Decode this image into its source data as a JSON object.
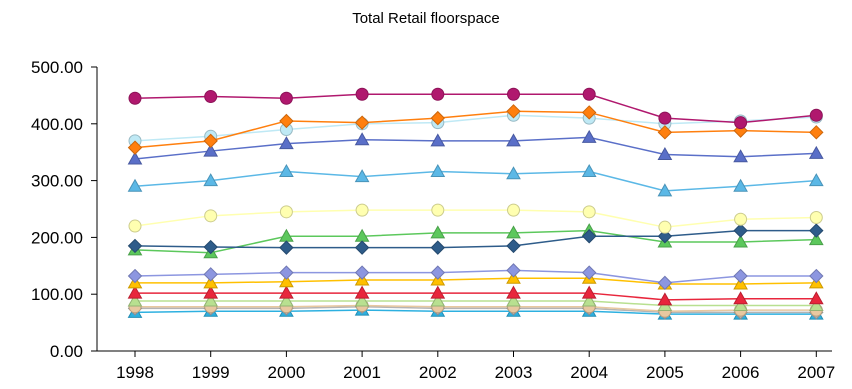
{
  "chart_data": {
    "type": "line",
    "title": "Total Retail floorspace",
    "xlabel": "",
    "ylabel": "",
    "ylim": [
      0,
      500
    ],
    "y_ticks": [
      "0.00",
      "100.00",
      "200.00",
      "300.00",
      "400.00",
      "500.00"
    ],
    "categories": [
      "1998",
      "1999",
      "2000",
      "2001",
      "2002",
      "2003",
      "2004",
      "2005",
      "2006",
      "2007"
    ],
    "grid": false,
    "legend": "none",
    "series": [
      {
        "color": "#B0186E",
        "marker": "circle",
        "values": [
          445,
          448,
          445,
          452,
          452,
          452,
          452,
          410,
          402,
          415
        ]
      },
      {
        "color": "#FF7F0E",
        "marker": "diamond",
        "values": [
          358,
          370,
          405,
          402,
          410,
          422,
          420,
          385,
          388,
          385
        ]
      },
      {
        "color": "#BFE9F5",
        "marker": "circle",
        "values": [
          370,
          378,
          390,
          400,
          402,
          415,
          410,
          400,
          405,
          412
        ]
      },
      {
        "color": "#5A6FC8",
        "marker": "triangle",
        "values": [
          338,
          352,
          365,
          372,
          370,
          370,
          376,
          346,
          342,
          348
        ]
      },
      {
        "color": "#5BB8E6",
        "marker": "triangle",
        "values": [
          290,
          300,
          316,
          307,
          316,
          312,
          316,
          282,
          290,
          300
        ]
      },
      {
        "color": "#FFFFB0",
        "marker": "circle",
        "values": [
          220,
          238,
          245,
          248,
          248,
          248,
          245,
          218,
          232,
          235
        ]
      },
      {
        "color": "#2E5C8A",
        "marker": "diamond",
        "values": [
          185,
          183,
          182,
          182,
          182,
          185,
          202,
          202,
          212,
          212
        ]
      },
      {
        "color": "#5CC85C",
        "marker": "triangle",
        "values": [
          178,
          173,
          202,
          202,
          208,
          208,
          212,
          192,
          192,
          196
        ]
      },
      {
        "color": "#8C96E0",
        "marker": "diamond",
        "values": [
          132,
          135,
          138,
          138,
          138,
          142,
          138,
          120,
          132,
          132
        ]
      },
      {
        "color": "#FFC000",
        "marker": "triangle",
        "values": [
          120,
          120,
          122,
          125,
          125,
          128,
          128,
          118,
          118,
          120
        ]
      },
      {
        "color": "#E8263C",
        "marker": "triangle",
        "values": [
          102,
          102,
          102,
          102,
          102,
          102,
          102,
          90,
          92,
          92
        ]
      },
      {
        "color": "#B8E090",
        "marker": "triangle",
        "values": [
          88,
          88,
          88,
          88,
          88,
          88,
          88,
          80,
          80,
          80
        ]
      },
      {
        "color": "#E8C8A0",
        "marker": "circle",
        "values": [
          78,
          78,
          78,
          80,
          78,
          78,
          78,
          70,
          72,
          72
        ]
      },
      {
        "color": "#B4B4B4",
        "marker": "diamond",
        "values": [
          75,
          75,
          75,
          78,
          75,
          75,
          75,
          68,
          68,
          68
        ]
      },
      {
        "color": "#2DB0E0",
        "marker": "triangle",
        "values": [
          68,
          70,
          70,
          72,
          70,
          70,
          70,
          65,
          65,
          65
        ]
      }
    ]
  }
}
